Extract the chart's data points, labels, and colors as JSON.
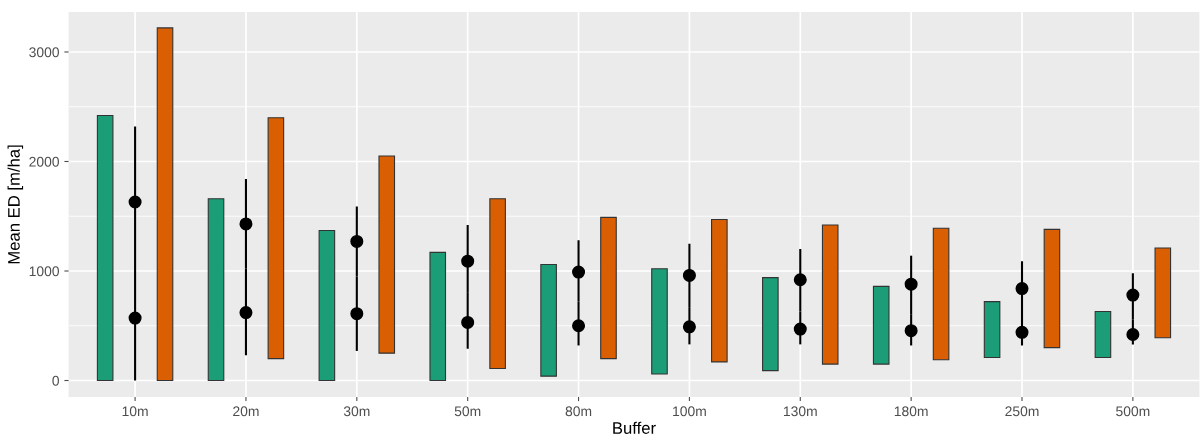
{
  "chart_data": {
    "type": "bar",
    "xlabel": "Buffer",
    "ylabel": "Mean ED [m/ha]",
    "categories": [
      "10m",
      "20m",
      "30m",
      "50m",
      "80m",
      "100m",
      "130m",
      "180m",
      "250m",
      "500m"
    ],
    "series": [
      {
        "color": "#1b9e77",
        "base": [
          0,
          0,
          0,
          0,
          40,
          60,
          90,
          150,
          210,
          210
        ],
        "values": [
          2420,
          1660,
          1370,
          1170,
          1020,
          960,
          850,
          710,
          510,
          420
        ]
      },
      {
        "color": "#d95f02",
        "base": [
          0,
          200,
          250,
          110,
          200,
          170,
          150,
          190,
          300,
          390
        ],
        "values": [
          3220,
          2200,
          1800,
          1550,
          1290,
          1300,
          1270,
          1200,
          1080,
          820
        ]
      },
      {
        "type": "scatter",
        "color": "#000000",
        "x": [
          "10m",
          "20m",
          "30m",
          "50m",
          "80m",
          "100m",
          "130m",
          "180m",
          "250m",
          "500m"
        ],
        "values": [
          1630,
          1430,
          1270,
          1090,
          990,
          960,
          920,
          880,
          840,
          780
        ],
        "errors": [
          [
            1100,
            2320
          ],
          [
            1020,
            1840
          ],
          [
            950,
            1590
          ],
          [
            800,
            1420
          ],
          [
            720,
            1280
          ],
          [
            670,
            1250
          ],
          [
            630,
            1200
          ],
          [
            600,
            1140
          ],
          [
            580,
            1090
          ],
          [
            560,
            980
          ]
        ]
      },
      {
        "type": "scatter",
        "color": "#000000",
        "x": [
          "10m",
          "20m",
          "30m",
          "50m",
          "80m",
          "100m",
          "130m",
          "180m",
          "250m",
          "500m"
        ],
        "values": [
          570,
          620,
          610,
          530,
          500,
          490,
          470,
          455,
          440,
          420
        ],
        "errors": [
          [
            0,
            1100
          ],
          [
            230,
            1020
          ],
          [
            270,
            950
          ],
          [
            290,
            800
          ],
          [
            320,
            720
          ],
          [
            330,
            670
          ],
          [
            330,
            630
          ],
          [
            320,
            600
          ],
          [
            320,
            580
          ],
          [
            330,
            560
          ]
        ]
      }
    ],
    "ylim": [
      -150,
      3365
    ],
    "yticks": [
      0,
      {
        "value": 500,
        "label": null
      },
      1000,
      {
        "value": 1500,
        "label": null
      },
      2000,
      {
        "value": 2500,
        "label": null
      },
      3000
    ],
    "grid": true,
    "marker": "circle"
  }
}
